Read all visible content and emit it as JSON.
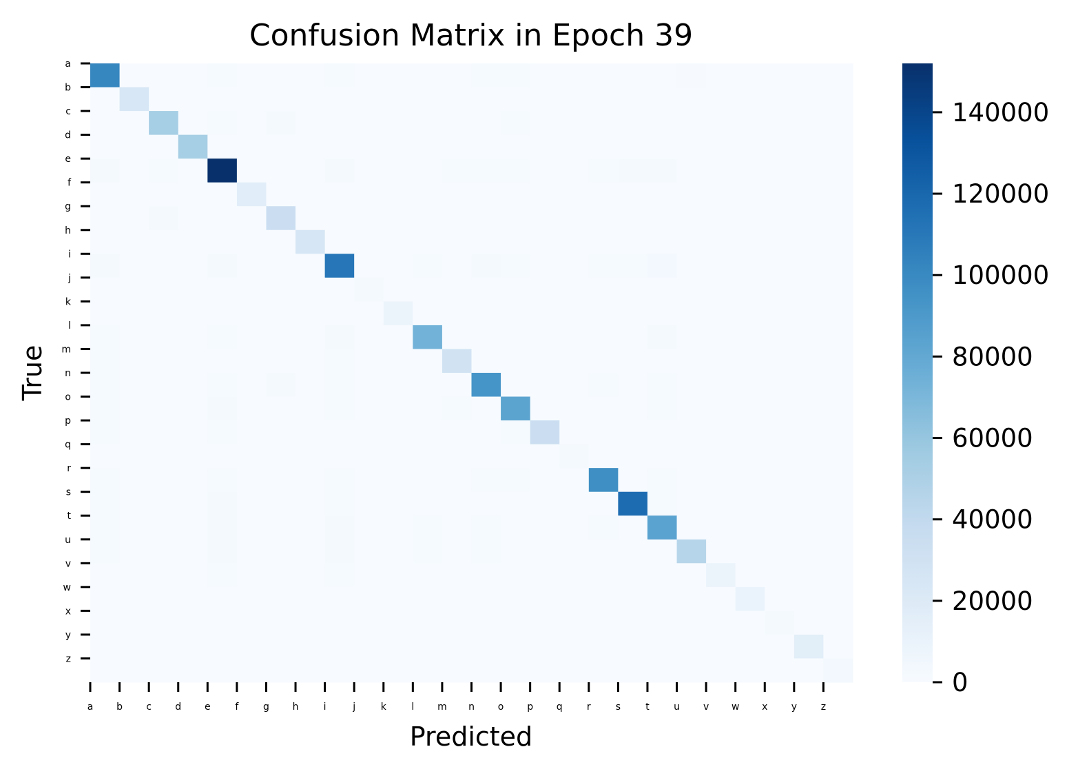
{
  "chart_data": {
    "type": "heatmap",
    "title": "Confusion Matrix in Epoch 39",
    "xlabel": "Predicted",
    "ylabel": "True",
    "x_categories": [
      "a",
      "b",
      "c",
      "d",
      "e",
      "f",
      "g",
      "h",
      "i",
      "j",
      "k",
      "l",
      "m",
      "n",
      "o",
      "p",
      "q",
      "r",
      "s",
      "t",
      "u",
      "v",
      "w",
      "x",
      "y",
      "z"
    ],
    "y_categories": [
      "a",
      "b",
      "c",
      "d",
      "e",
      "f",
      "g",
      "h",
      "i",
      "j",
      "k",
      "l",
      "m",
      "n",
      "o",
      "p",
      "q",
      "r",
      "s",
      "t",
      "u",
      "v",
      "w",
      "x",
      "y",
      "z"
    ],
    "colormap": "Blues",
    "colorbar": {
      "min": 0,
      "max": 152000,
      "ticks": [
        0,
        20000,
        40000,
        60000,
        80000,
        100000,
        120000,
        140000
      ]
    },
    "diagonal_values": [
      102000,
      24000,
      53000,
      53000,
      152000,
      17000,
      34000,
      25000,
      111000,
      2000,
      9000,
      73000,
      29000,
      93000,
      83000,
      34000,
      2000,
      97000,
      117000,
      84000,
      45000,
      9000,
      10000,
      2000,
      16000,
      4000
    ],
    "off_diagonal": [
      {
        "row": "a",
        "col": "e",
        "value": 1500
      },
      {
        "row": "a",
        "col": "i",
        "value": 1500
      },
      {
        "row": "a",
        "col": "n",
        "value": 1500
      },
      {
        "row": "a",
        "col": "o",
        "value": 1500
      },
      {
        "row": "a",
        "col": "u",
        "value": 1000
      },
      {
        "row": "c",
        "col": "e",
        "value": 1500
      },
      {
        "row": "c",
        "col": "g",
        "value": 2000
      },
      {
        "row": "c",
        "col": "o",
        "value": 1500
      },
      {
        "row": "e",
        "col": "a",
        "value": 2500
      },
      {
        "row": "e",
        "col": "c",
        "value": 1500
      },
      {
        "row": "e",
        "col": "i",
        "value": 2000
      },
      {
        "row": "e",
        "col": "m",
        "value": 1500
      },
      {
        "row": "e",
        "col": "n",
        "value": 1500
      },
      {
        "row": "e",
        "col": "o",
        "value": 1500
      },
      {
        "row": "e",
        "col": "r",
        "value": 1500
      },
      {
        "row": "e",
        "col": "s",
        "value": 2000
      },
      {
        "row": "e",
        "col": "t",
        "value": 2500
      },
      {
        "row": "g",
        "col": "c",
        "value": 2000
      },
      {
        "row": "i",
        "col": "a",
        "value": 2000
      },
      {
        "row": "i",
        "col": "e",
        "value": 2500
      },
      {
        "row": "i",
        "col": "l",
        "value": 1500
      },
      {
        "row": "i",
        "col": "n",
        "value": 2500
      },
      {
        "row": "i",
        "col": "o",
        "value": 1500
      },
      {
        "row": "i",
        "col": "r",
        "value": 1500
      },
      {
        "row": "i",
        "col": "s",
        "value": 1500
      },
      {
        "row": "i",
        "col": "t",
        "value": 3000
      },
      {
        "row": "l",
        "col": "a",
        "value": 1500
      },
      {
        "row": "l",
        "col": "e",
        "value": 1500
      },
      {
        "row": "l",
        "col": "i",
        "value": 2000
      },
      {
        "row": "l",
        "col": "t",
        "value": 2000
      },
      {
        "row": "m",
        "col": "a",
        "value": 1500
      },
      {
        "row": "m",
        "col": "i",
        "value": 1500
      },
      {
        "row": "n",
        "col": "a",
        "value": 1500
      },
      {
        "row": "n",
        "col": "e",
        "value": 1500
      },
      {
        "row": "n",
        "col": "g",
        "value": 2000
      },
      {
        "row": "n",
        "col": "i",
        "value": 1500
      },
      {
        "row": "n",
        "col": "r",
        "value": 1500
      },
      {
        "row": "n",
        "col": "t",
        "value": 1500
      },
      {
        "row": "o",
        "col": "a",
        "value": 1500
      },
      {
        "row": "o",
        "col": "e",
        "value": 2000
      },
      {
        "row": "o",
        "col": "i",
        "value": 1500
      },
      {
        "row": "o",
        "col": "m",
        "value": 1500
      },
      {
        "row": "o",
        "col": "t",
        "value": 1500
      },
      {
        "row": "p",
        "col": "a",
        "value": 1500
      },
      {
        "row": "p",
        "col": "e",
        "value": 1500
      },
      {
        "row": "p",
        "col": "o",
        "value": 1500
      },
      {
        "row": "r",
        "col": "a",
        "value": 1500
      },
      {
        "row": "r",
        "col": "e",
        "value": 1500
      },
      {
        "row": "r",
        "col": "i",
        "value": 1500
      },
      {
        "row": "r",
        "col": "n",
        "value": 1500
      },
      {
        "row": "r",
        "col": "o",
        "value": 1500
      },
      {
        "row": "r",
        "col": "t",
        "value": 1500
      },
      {
        "row": "s",
        "col": "a",
        "value": 1500
      },
      {
        "row": "s",
        "col": "e",
        "value": 2500
      },
      {
        "row": "s",
        "col": "i",
        "value": 1500
      },
      {
        "row": "s",
        "col": "t",
        "value": 1500
      },
      {
        "row": "t",
        "col": "a",
        "value": 1500
      },
      {
        "row": "t",
        "col": "e",
        "value": 2000
      },
      {
        "row": "t",
        "col": "i",
        "value": 2000
      },
      {
        "row": "t",
        "col": "l",
        "value": 1500
      },
      {
        "row": "t",
        "col": "n",
        "value": 1500
      },
      {
        "row": "t",
        "col": "r",
        "value": 1500
      },
      {
        "row": "u",
        "col": "a",
        "value": 1500
      },
      {
        "row": "u",
        "col": "e",
        "value": 2000
      },
      {
        "row": "u",
        "col": "i",
        "value": 2000
      },
      {
        "row": "u",
        "col": "l",
        "value": 1500
      },
      {
        "row": "u",
        "col": "n",
        "value": 1500
      },
      {
        "row": "v",
        "col": "e",
        "value": 1500
      },
      {
        "row": "v",
        "col": "i",
        "value": 1500
      }
    ]
  }
}
